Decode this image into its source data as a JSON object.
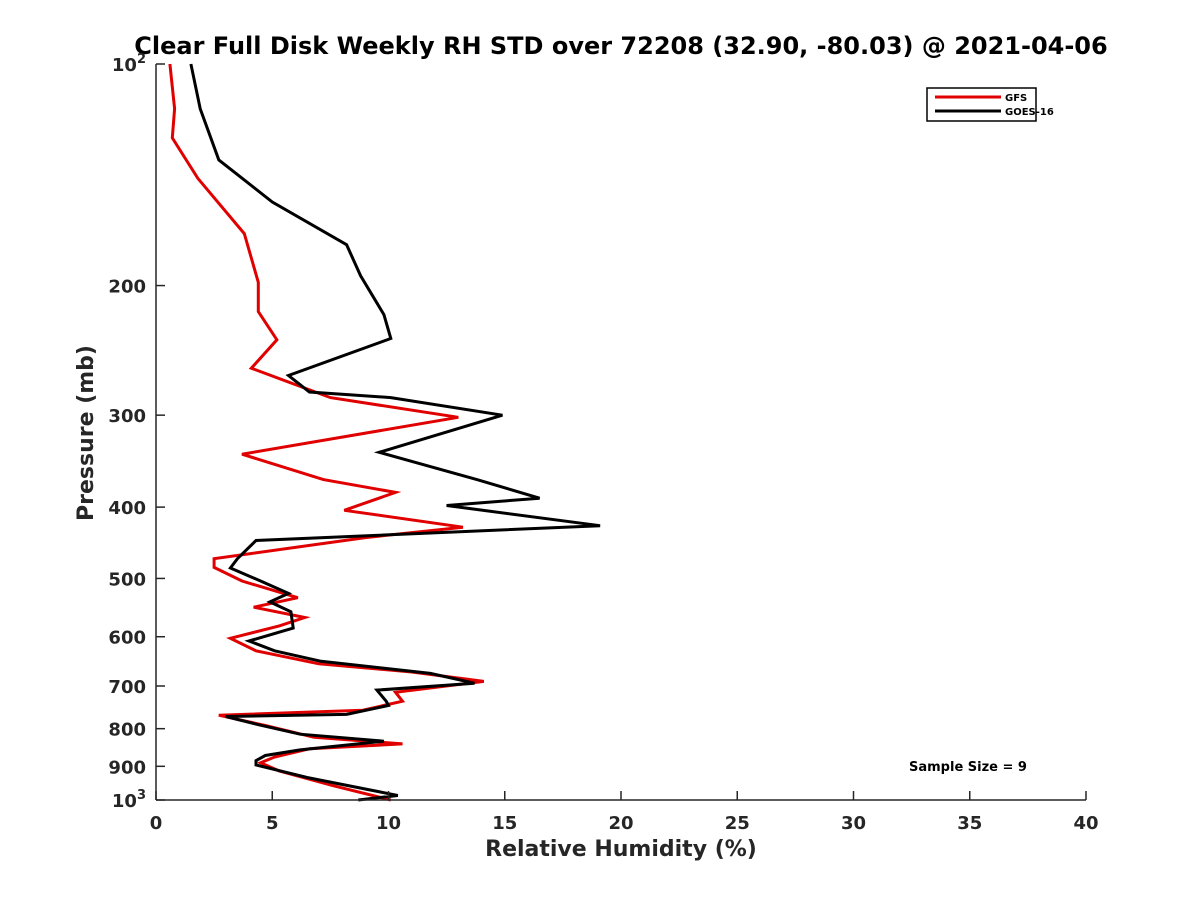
{
  "chart_data": {
    "type": "line",
    "title": "Clear Full Disk Weekly RH STD over 72208 (32.90, -80.03) @ 2021-04-06",
    "xlabel": "Relative Humidity (%)",
    "ylabel": "Pressure (mb)",
    "xlim": [
      0,
      40
    ],
    "ylim": [
      100,
      1000
    ],
    "y_scale": "log",
    "y_reversed": true,
    "grid": false,
    "legend_position": "top-right",
    "x_ticks": [
      "0",
      "5",
      "10",
      "15",
      "20",
      "25",
      "30",
      "35",
      "40"
    ],
    "y_ticks": [
      {
        "value": 100,
        "base": "10",
        "exp": "2"
      },
      {
        "value": 200,
        "base": "200",
        "exp": ""
      },
      {
        "value": 300,
        "base": "300",
        "exp": ""
      },
      {
        "value": 400,
        "base": "400",
        "exp": ""
      },
      {
        "value": 500,
        "base": "500",
        "exp": ""
      },
      {
        "value": 600,
        "base": "600",
        "exp": ""
      },
      {
        "value": 700,
        "base": "700",
        "exp": ""
      },
      {
        "value": 800,
        "base": "800",
        "exp": ""
      },
      {
        "value": 900,
        "base": "900",
        "exp": ""
      },
      {
        "value": 1000,
        "base": "10",
        "exp": "3"
      }
    ],
    "series": [
      {
        "name": "GFS",
        "color": "#e00000",
        "points": [
          [
            0.6,
            100
          ],
          [
            0.8,
            115
          ],
          [
            0.7,
            126
          ],
          [
            1.8,
            143
          ],
          [
            3.8,
            170
          ],
          [
            4.4,
            198
          ],
          [
            4.4,
            217
          ],
          [
            5.2,
            237
          ],
          [
            4.1,
            259
          ],
          [
            7.5,
            284
          ],
          [
            13.0,
            302
          ],
          [
            3.7,
            339
          ],
          [
            7.2,
            367
          ],
          [
            10.3,
            382
          ],
          [
            8.1,
            404
          ],
          [
            13.2,
            426
          ],
          [
            9.0,
            440
          ],
          [
            2.5,
            470
          ],
          [
            2.5,
            483
          ],
          [
            3.7,
            504
          ],
          [
            6.1,
            531
          ],
          [
            4.2,
            547
          ],
          [
            6.4,
            565
          ],
          [
            5.3,
            580
          ],
          [
            3.2,
            603
          ],
          [
            4.3,
            627
          ],
          [
            7.0,
            653
          ],
          [
            11.0,
            670
          ],
          [
            14.1,
            690
          ],
          [
            10.3,
            714
          ],
          [
            10.6,
            734
          ],
          [
            8.9,
            755
          ],
          [
            2.7,
            767
          ],
          [
            4.7,
            792
          ],
          [
            6.8,
            822
          ],
          [
            10.6,
            839
          ],
          [
            6.6,
            852
          ],
          [
            5.1,
            874
          ],
          [
            4.5,
            890
          ],
          [
            5.3,
            913
          ],
          [
            7.6,
            956
          ],
          [
            10.1,
            1000
          ]
        ]
      },
      {
        "name": "GOES-16",
        "color": "#000000",
        "points": [
          [
            1.5,
            100
          ],
          [
            1.9,
            115
          ],
          [
            2.7,
            135
          ],
          [
            5.0,
            154
          ],
          [
            8.2,
            176
          ],
          [
            8.8,
            194
          ],
          [
            9.8,
            219
          ],
          [
            10.1,
            236
          ],
          [
            5.7,
            265
          ],
          [
            6.6,
            279
          ],
          [
            10.1,
            284
          ],
          [
            14.9,
            300
          ],
          [
            9.6,
            337
          ],
          [
            13.8,
            367
          ],
          [
            16.5,
            389
          ],
          [
            12.5,
            398
          ],
          [
            19.1,
            424
          ],
          [
            4.3,
            444
          ],
          [
            3.5,
            470
          ],
          [
            3.2,
            484
          ],
          [
            4.5,
            504
          ],
          [
            5.7,
            524
          ],
          [
            4.9,
            538
          ],
          [
            5.8,
            555
          ],
          [
            5.9,
            584
          ],
          [
            4.0,
            608
          ],
          [
            5.1,
            627
          ],
          [
            7.1,
            648
          ],
          [
            11.8,
            673
          ],
          [
            13.7,
            694
          ],
          [
            9.5,
            709
          ],
          [
            9.9,
            734
          ],
          [
            10.0,
            744
          ],
          [
            8.2,
            765
          ],
          [
            3.0,
            770
          ],
          [
            4.4,
            790
          ],
          [
            6.2,
            814
          ],
          [
            9.8,
            832
          ],
          [
            6.2,
            855
          ],
          [
            4.7,
            870
          ],
          [
            4.3,
            884
          ],
          [
            4.3,
            896
          ],
          [
            6.5,
            932
          ],
          [
            8.7,
            962
          ],
          [
            10.4,
            986
          ],
          [
            8.7,
            1000
          ]
        ]
      }
    ],
    "annotation": "Sample Size = 9"
  }
}
